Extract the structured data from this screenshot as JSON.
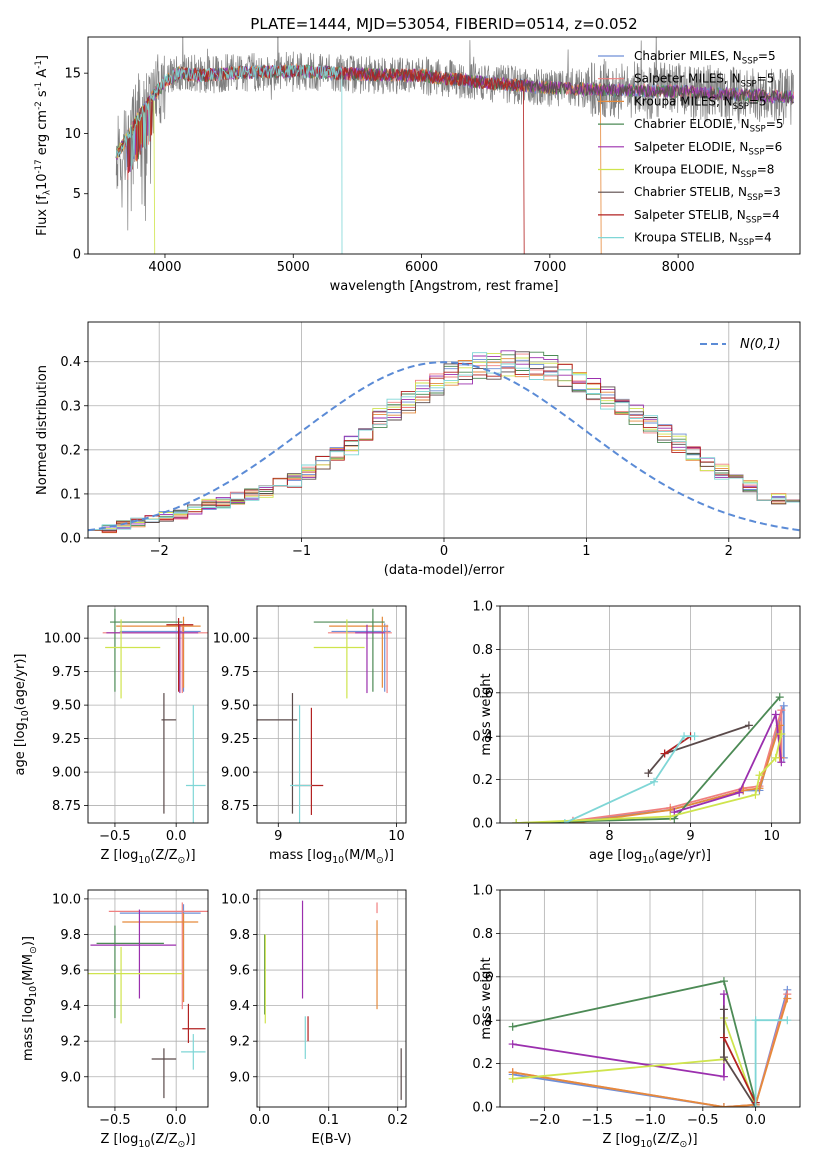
{
  "figure_title": "PLATE=1444, MJD=53054, FIBERID=0514, z=0.052",
  "colors": {
    "observed": "#7f7f7f",
    "grid": "#b0b0b0",
    "normal_curve": "#5b8bd6",
    "models": [
      "#6f8fd6",
      "#f08080",
      "#e58a3c",
      "#4c8a55",
      "#9b2fae",
      "#cfe44d",
      "#5a4a4a",
      "#b22222",
      "#7fd6d6"
    ]
  },
  "legends": {
    "spectrum": [
      "Chabrier MILES, N$_{SSP}$=5",
      "Salpeter MILES, N$_{SSP}$=5",
      "Kroupa MILES, N$_{SSP}$=5",
      "Chabrier ELODIE, N$_{SSP}$=5",
      "Salpeter ELODIE, N$_{SSP}$=6",
      "Kroupa ELODIE, N$_{SSP}$=8",
      "Chabrier STELIB, N$_{SSP}$=3",
      "Salpeter STELIB, N$_{SSP}$=4",
      "Kroupa STELIB, N$_{SSP}$=4"
    ],
    "residual": "$\\mathcal{N}(0,1)$"
  },
  "chart_data": [
    {
      "id": "spectrum",
      "type": "line",
      "title": "PLATE=1444, MJD=53054, FIBERID=0514, z=0.052",
      "xlabel": "wavelength [Angstrom, rest frame]",
      "ylabel": "Flux [f$_\\lambda$10$^{-17}$ erg cm$^{-2}$ s$^{-1}$ A$^{-1}$]",
      "xlim": [
        3400,
        8950
      ],
      "ylim": [
        0,
        18
      ],
      "xticks": [
        4000,
        5000,
        6000,
        7000,
        8000
      ],
      "yticks": [
        0,
        5,
        10,
        15
      ],
      "grid": false,
      "legend_position": "upper-right",
      "continuum_approx": {
        "x": [
          3620,
          3700,
          3800,
          3900,
          4000,
          4100,
          4300,
          4500,
          5000,
          5500,
          6000,
          6500,
          7000,
          7500,
          8000,
          8500,
          8900
        ],
        "y": [
          8.2,
          9.5,
          11.5,
          13.0,
          14.3,
          15.0,
          14.8,
          15.0,
          15.2,
          14.9,
          14.8,
          14.2,
          13.8,
          13.6,
          13.5,
          13.2,
          13.0
        ]
      },
      "dropouts": [
        {
          "series": "Kroupa ELODIE, N$_{SSP}$=8",
          "x": 3920
        },
        {
          "series": "Kroupa STELIB, N$_{SSP}$=4",
          "x": 5380
        },
        {
          "series": "Salpeter STELIB, N$_{SSP}$=4",
          "x": 6800
        },
        {
          "series": "Kroupa MILES, N$_{SSP}$=5",
          "x": 7400
        }
      ]
    },
    {
      "id": "residuals",
      "type": "histogram",
      "xlabel": "(data-model)/error",
      "ylabel": "Normed distribution",
      "xlim": [
        -2.5,
        2.5
      ],
      "ylim": [
        0,
        0.49
      ],
      "xticks": [
        -2,
        -1,
        0,
        1,
        2
      ],
      "yticks": [
        0.0,
        0.1,
        0.2,
        0.3,
        0.4
      ],
      "grid": true,
      "legend_position": "upper-right",
      "bin_edges_start": -2.5,
      "bin_width": 0.1,
      "mean_distribution": [
        0.02,
        0.02,
        0.03,
        0.035,
        0.04,
        0.05,
        0.055,
        0.065,
        0.075,
        0.08,
        0.09,
        0.1,
        0.105,
        0.12,
        0.13,
        0.15,
        0.17,
        0.19,
        0.21,
        0.24,
        0.27,
        0.29,
        0.31,
        0.33,
        0.35,
        0.365,
        0.375,
        0.39,
        0.39,
        0.4,
        0.395,
        0.39,
        0.385,
        0.37,
        0.355,
        0.34,
        0.32,
        0.3,
        0.28,
        0.26,
        0.235,
        0.215,
        0.19,
        0.17,
        0.15,
        0.13,
        0.12,
        0.1,
        0.09,
        0.08,
        0.07,
        0.06,
        0.055,
        0.045,
        0.04,
        0.035,
        0.03,
        0.025,
        0.02
      ]
    },
    {
      "id": "age_vs_Z",
      "type": "errorbar",
      "xlabel": "Z [log$_{10}$(Z/Z$_\\odot$)]",
      "ylabel": "age  [log$_{10}$(age/yr)]",
      "xlim": [
        -0.72,
        0.26
      ],
      "ylim": [
        8.62,
        10.24
      ],
      "xticks": [
        -0.5,
        0.0
      ],
      "yticks": [
        8.75,
        9.0,
        9.25,
        9.5,
        9.75,
        10.0
      ],
      "grid": true,
      "points": [
        {
          "model": 0,
          "x": 0.06,
          "y": 10.05,
          "xerr": [
            0.52,
            0.14
          ],
          "yerr": [
            0.45,
            0.06
          ]
        },
        {
          "model": 1,
          "x": 0.05,
          "y": 10.04,
          "xerr": [
            0.65,
            0.22
          ],
          "yerr": [
            0.45,
            0.06
          ]
        },
        {
          "model": 2,
          "x": 0.06,
          "y": 10.09,
          "xerr": [
            0.55,
            0.14
          ],
          "yerr": [
            0.46,
            0.07
          ]
        },
        {
          "model": 3,
          "x": -0.5,
          "y": 10.12,
          "xerr": [
            0.04,
            0.55
          ],
          "yerr": [
            0.52,
            0.1
          ]
        },
        {
          "model": 4,
          "x": 0.03,
          "y": 10.04,
          "xerr": [
            0.6,
            0.15
          ],
          "yerr": [
            0.45,
            0.06
          ]
        },
        {
          "model": 5,
          "x": -0.45,
          "y": 9.93,
          "xerr": [
            0.13,
            0.32
          ],
          "yerr": [
            0.38,
            0.21
          ]
        },
        {
          "model": 6,
          "x": -0.1,
          "y": 9.39,
          "xerr": [
            0.02,
            0.1
          ],
          "yerr": [
            0.7,
            0.2
          ]
        },
        {
          "model": 7,
          "x": 0.02,
          "y": 10.1,
          "xerr": [
            0.1,
            0.12
          ],
          "yerr": [
            0.5,
            0.05
          ]
        },
        {
          "model": 8,
          "x": 0.14,
          "y": 8.9,
          "xerr": [
            0.06,
            0.1
          ],
          "yerr": [
            0.3,
            0.6
          ]
        }
      ]
    },
    {
      "id": "age_vs_mass",
      "type": "errorbar",
      "xlabel": "mass [log$_{10}$(M/M$_\\odot$)]",
      "ylabel": "",
      "xlim": [
        8.82,
        10.08
      ],
      "ylim": [
        8.62,
        10.24
      ],
      "xticks": [
        9,
        10
      ],
      "yticks": [
        8.75,
        9.0,
        9.25,
        9.5,
        9.75,
        10.0
      ],
      "grid": true,
      "points": [
        {
          "model": 0,
          "x": 9.9,
          "y": 10.05,
          "xerr": [
            0.45,
            0.05
          ],
          "yerr": [
            0.45,
            0.06
          ]
        },
        {
          "model": 1,
          "x": 9.92,
          "y": 10.04,
          "xerr": [
            0.5,
            0.04
          ],
          "yerr": [
            0.45,
            0.06
          ]
        },
        {
          "model": 2,
          "x": 9.88,
          "y": 10.09,
          "xerr": [
            0.45,
            0.05
          ],
          "yerr": [
            0.46,
            0.07
          ]
        },
        {
          "model": 3,
          "x": 9.8,
          "y": 10.12,
          "xerr": [
            0.5,
            0.1
          ],
          "yerr": [
            0.52,
            0.1
          ]
        },
        {
          "model": 4,
          "x": 9.75,
          "y": 10.04,
          "xerr": [
            0.1,
            0.15
          ],
          "yerr": [
            0.45,
            0.06
          ]
        },
        {
          "model": 5,
          "x": 9.58,
          "y": 9.93,
          "xerr": [
            0.28,
            0.15
          ],
          "yerr": [
            0.38,
            0.21
          ]
        },
        {
          "model": 6,
          "x": 9.12,
          "y": 9.39,
          "xerr": [
            0.3,
            0.04
          ],
          "yerr": [
            0.7,
            0.2
          ]
        },
        {
          "model": 7,
          "x": 9.28,
          "y": 8.9,
          "xerr": [
            0.14,
            0.1
          ],
          "yerr": [
            0.22,
            0.58
          ]
        },
        {
          "model": 8,
          "x": 9.18,
          "y": 8.9,
          "xerr": [
            0.08,
            0.1
          ],
          "yerr": [
            0.3,
            0.6
          ]
        }
      ]
    },
    {
      "id": "weight_vs_age",
      "type": "line",
      "xlabel": "age  [log$_{10}$(age/yr)]",
      "ylabel": "mass weight",
      "xlim": [
        6.65,
        10.35
      ],
      "ylim": [
        0,
        1.0
      ],
      "xticks": [
        7,
        8,
        9,
        10
      ],
      "yticks": [
        0.0,
        0.2,
        0.4,
        0.6,
        0.8,
        1.0
      ],
      "grid": true,
      "series": [
        {
          "model": 0,
          "x": [
            7.55,
            8.75,
            9.65,
            9.85,
            10.15,
            10.15
          ],
          "y": [
            0.01,
            0.06,
            0.15,
            0.15,
            0.54,
            0.3
          ]
        },
        {
          "model": 1,
          "x": [
            7.55,
            8.75,
            9.65,
            9.85,
            10.12,
            10.12
          ],
          "y": [
            0.01,
            0.07,
            0.16,
            0.17,
            0.52,
            0.3
          ]
        },
        {
          "model": 2,
          "x": [
            7.55,
            8.75,
            9.65,
            9.85,
            10.1,
            10.1
          ],
          "y": [
            0.0,
            0.06,
            0.15,
            0.16,
            0.45,
            0.3
          ]
        },
        {
          "model": 3,
          "x": [
            6.85,
            8.8,
            10.1
          ],
          "y": [
            0.0,
            0.02,
            0.58
          ]
        },
        {
          "model": 4,
          "x": [
            8.8,
            9.6,
            10.05,
            10.12
          ],
          "y": [
            0.05,
            0.14,
            0.5,
            0.28
          ]
        },
        {
          "model": 5,
          "x": [
            6.85,
            8.75,
            9.8,
            9.85,
            10.05,
            10.12
          ],
          "y": [
            0.0,
            0.03,
            0.13,
            0.22,
            0.3,
            0.41
          ]
        },
        {
          "model": 6,
          "x": [
            8.48,
            8.68,
            9.72
          ],
          "y": [
            0.23,
            0.32,
            0.45
          ]
        },
        {
          "model": 7,
          "x": [
            8.68,
            9.0
          ],
          "y": [
            0.32,
            0.4
          ]
        },
        {
          "model": 8,
          "x": [
            7.45,
            8.55,
            8.92,
            9.05
          ],
          "y": [
            0.0,
            0.19,
            0.4,
            0.4
          ]
        }
      ]
    },
    {
      "id": "mass_vs_Z",
      "type": "errorbar",
      "xlabel": "Z [log$_{10}$(Z/Z$_\\odot$)]",
      "ylabel": "mass [log$_{10}$(M/M$_\\odot$)]",
      "xlim": [
        -0.72,
        0.26
      ],
      "ylim": [
        8.83,
        10.05
      ],
      "xticks": [
        -0.5,
        0.0
      ],
      "yticks": [
        9.0,
        9.2,
        9.4,
        9.6,
        9.8,
        10.0
      ],
      "grid": true,
      "points": [
        {
          "model": 0,
          "x": 0.06,
          "y": 9.92,
          "xerr": [
            0.52,
            0.14
          ],
          "yerr": [
            0.5,
            0.05
          ]
        },
        {
          "model": 1,
          "x": 0.05,
          "y": 9.93,
          "xerr": [
            0.6,
            0.22
          ],
          "yerr": [
            0.55,
            0.05
          ]
        },
        {
          "model": 2,
          "x": 0.06,
          "y": 9.87,
          "xerr": [
            0.5,
            0.12
          ],
          "yerr": [
            0.45,
            0.05
          ]
        },
        {
          "model": 3,
          "x": -0.5,
          "y": 9.75,
          "xerr": [
            0.15,
            0.4
          ],
          "yerr": [
            0.42,
            0.1
          ]
        },
        {
          "model": 4,
          "x": -0.3,
          "y": 9.74,
          "xerr": [
            0.4,
            0.3
          ],
          "yerr": [
            0.3,
            0.2
          ]
        },
        {
          "model": 5,
          "x": -0.45,
          "y": 9.58,
          "xerr": [
            0.27,
            0.5
          ],
          "yerr": [
            0.28,
            0.15
          ]
        },
        {
          "model": 6,
          "x": -0.1,
          "y": 9.1,
          "xerr": [
            0.1,
            0.1
          ],
          "yerr": [
            0.22,
            0.06
          ]
        },
        {
          "model": 7,
          "x": 0.1,
          "y": 9.27,
          "xerr": [
            0.05,
            0.14
          ],
          "yerr": [
            0.08,
            0.14
          ]
        },
        {
          "model": 8,
          "x": 0.14,
          "y": 9.14,
          "xerr": [
            0.1,
            0.1
          ],
          "yerr": [
            0.1,
            0.1
          ]
        }
      ]
    },
    {
      "id": "mass_vs_ebv",
      "type": "errorbar",
      "xlabel": "E(B-V)",
      "ylabel": "",
      "xlim": [
        -0.004,
        0.212
      ],
      "ylim": [
        8.83,
        10.05
      ],
      "xticks": [
        0.0,
        0.1,
        0.2
      ],
      "yticks": [
        9.0,
        9.2,
        9.4,
        9.6,
        9.8,
        10.0
      ],
      "grid": true,
      "points": [
        {
          "model": 1,
          "x": 0.17,
          "y": 9.95,
          "xerr": [
            0,
            0
          ],
          "yerr": [
            0.03,
            0.03
          ]
        },
        {
          "model": 2,
          "x": 0.17,
          "y": 9.63,
          "xerr": [
            0,
            0
          ],
          "yerr": [
            0.25,
            0.25
          ]
        },
        {
          "model": 3,
          "x": 0.007,
          "y": 9.55,
          "xerr": [
            0,
            0
          ],
          "yerr": [
            0.2,
            0.25
          ]
        },
        {
          "model": 4,
          "x": 0.062,
          "y": 9.72,
          "xerr": [
            0,
            0
          ],
          "yerr": [
            0.28,
            0.27
          ]
        },
        {
          "model": 5,
          "x": 0.008,
          "y": 9.55,
          "xerr": [
            0,
            0
          ],
          "yerr": [
            0.25,
            0.25
          ]
        },
        {
          "model": 6,
          "x": 0.205,
          "y": 9.02,
          "xerr": [
            0,
            0
          ],
          "yerr": [
            0.15,
            0.14
          ]
        },
        {
          "model": 7,
          "x": 0.07,
          "y": 9.27,
          "xerr": [
            0,
            0
          ],
          "yerr": [
            0.07,
            0.07
          ]
        },
        {
          "model": 8,
          "x": 0.066,
          "y": 9.22,
          "xerr": [
            0,
            0
          ],
          "yerr": [
            0.12,
            0.12
          ]
        }
      ]
    },
    {
      "id": "weight_vs_Z",
      "type": "line",
      "xlabel": "Z [log$_{10}$(Z/Z$_\\odot$)]",
      "ylabel": "mass weight",
      "xlim": [
        -2.42,
        0.42
      ],
      "ylim": [
        0,
        1.0
      ],
      "xticks": [
        -2.0,
        -1.5,
        -1.0,
        -0.5,
        0.0
      ],
      "yticks": [
        0.0,
        0.2,
        0.4,
        0.6,
        0.8,
        1.0
      ],
      "grid": true,
      "series": [
        {
          "model": 0,
          "x": [
            -2.3,
            -0.3,
            0.0,
            0.3
          ],
          "y": [
            0.15,
            0.0,
            0.01,
            0.54
          ]
        },
        {
          "model": 1,
          "x": [
            -2.3,
            -0.3,
            0.0,
            0.3
          ],
          "y": [
            0.16,
            0.0,
            0.01,
            0.52
          ]
        },
        {
          "model": 2,
          "x": [
            -2.3,
            -0.3,
            0.0,
            0.3
          ],
          "y": [
            0.16,
            0.0,
            0.01,
            0.5
          ]
        },
        {
          "model": 3,
          "x": [
            -2.3,
            -0.3,
            0.0
          ],
          "y": [
            0.37,
            0.58,
            0.02
          ]
        },
        {
          "model": 4,
          "x": [
            -2.3,
            -0.3,
            -0.3
          ],
          "y": [
            0.29,
            0.14,
            0.52
          ]
        },
        {
          "model": 5,
          "x": [
            -2.3,
            -0.3,
            -0.3,
            0.0
          ],
          "y": [
            0.13,
            0.22,
            0.41,
            0.0
          ]
        },
        {
          "model": 6,
          "x": [
            -0.3,
            -0.3,
            0.0
          ],
          "y": [
            0.45,
            0.23,
            0.0
          ]
        },
        {
          "model": 7,
          "x": [
            -0.3,
            0.0
          ],
          "y": [
            0.32,
            0.02
          ]
        },
        {
          "model": 8,
          "x": [
            0.0,
            0.0,
            0.3
          ],
          "y": [
            0.0,
            0.4,
            0.4
          ]
        }
      ]
    }
  ]
}
